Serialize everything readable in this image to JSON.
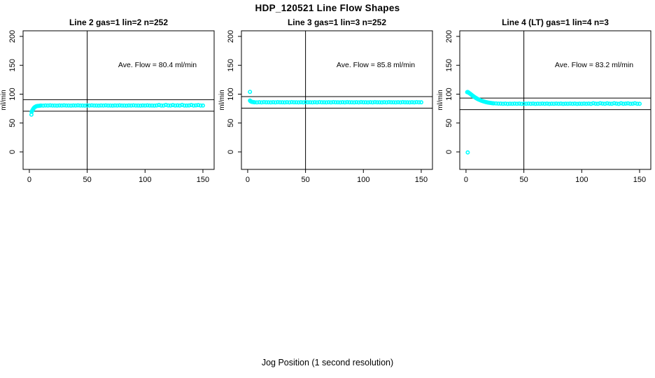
{
  "figure": {
    "title": "HDP_120521  Line Flow Shapes",
    "xlabel": "Jog Position (1 second resolution)",
    "background_color": "#ffffff",
    "point_color": "#00ffff",
    "axis_color": "#000000"
  },
  "chart_data": [
    {
      "type": "scatter",
      "title": "Line 2 gas=1 lin=2 n=252",
      "ylabel": "ml/min",
      "annotation": "Ave. Flow =  80.4  ml/min",
      "ave_flow_ml_min": 80.4,
      "n": 252,
      "x_ticks": [
        0,
        50,
        100,
        150
      ],
      "y_ticks": [
        0,
        50,
        100,
        150,
        200
      ],
      "xlim": [
        -5.4,
        159.7
      ],
      "ylim": [
        -30.3,
        209.7
      ],
      "vline_x": 50,
      "hlines": [
        70.4,
        90.4
      ],
      "grid": false,
      "points": [
        [
          1.8,
          64.5
        ],
        [
          2,
          69.5
        ],
        [
          2.4,
          71
        ],
        [
          2.8,
          72.5
        ],
        [
          3.2,
          74
        ],
        [
          3.6,
          75.2
        ],
        [
          4,
          76.3
        ],
        [
          4.5,
          77.3
        ],
        [
          5,
          78
        ],
        [
          5.5,
          78.6
        ],
        [
          6,
          79
        ],
        [
          7,
          79.5
        ],
        [
          8,
          79.8
        ],
        [
          9,
          80
        ],
        [
          10,
          80.4
        ],
        [
          12,
          80.1
        ],
        [
          14,
          80.5
        ],
        [
          16,
          80.2
        ],
        [
          18,
          80.6
        ],
        [
          20,
          80.3
        ],
        [
          22,
          80.4
        ],
        [
          24,
          80.1
        ],
        [
          26,
          80.5
        ],
        [
          28,
          80.2
        ],
        [
          30,
          80.6
        ],
        [
          32,
          80.3
        ],
        [
          34,
          80.4
        ],
        [
          36,
          80.1
        ],
        [
          38,
          80.5
        ],
        [
          40,
          80.2
        ],
        [
          42,
          80.6
        ],
        [
          44,
          80.3
        ],
        [
          46,
          80.4
        ],
        [
          48,
          80.1
        ],
        [
          50,
          80.5
        ],
        [
          52,
          80.2
        ],
        [
          54,
          80.6
        ],
        [
          56,
          80.3
        ],
        [
          58,
          80.4
        ],
        [
          60,
          80.1
        ],
        [
          62,
          80.5
        ],
        [
          64,
          80.2
        ],
        [
          66,
          80.6
        ],
        [
          68,
          80.3
        ],
        [
          70,
          80.4
        ],
        [
          72,
          80.1
        ],
        [
          74,
          80.5
        ],
        [
          76,
          80.2
        ],
        [
          78,
          80.6
        ],
        [
          80,
          80.3
        ],
        [
          82,
          80.4
        ],
        [
          84,
          80.1
        ],
        [
          86,
          80.5
        ],
        [
          88,
          80.2
        ],
        [
          90,
          80.6
        ],
        [
          92,
          80.3
        ],
        [
          94,
          80.4
        ],
        [
          96,
          80.1
        ],
        [
          98,
          80.5
        ],
        [
          100,
          80.2
        ],
        [
          102,
          80.6
        ],
        [
          104,
          80.3
        ],
        [
          106,
          80.4
        ],
        [
          108,
          80.1
        ],
        [
          110,
          80.5
        ],
        [
          112,
          81.2
        ],
        [
          114,
          80.4
        ],
        [
          116,
          80.2
        ],
        [
          118,
          81.3
        ],
        [
          120,
          80.5
        ],
        [
          122,
          80.2
        ],
        [
          124,
          81.1
        ],
        [
          126,
          80.4
        ],
        [
          128,
          80.6
        ],
        [
          130,
          80.3
        ],
        [
          132,
          81.3
        ],
        [
          134,
          80.4
        ],
        [
          136,
          80.2
        ],
        [
          138,
          80.5
        ],
        [
          140,
          81.2
        ],
        [
          142,
          80.3
        ],
        [
          144,
          80.6
        ],
        [
          146,
          81.1
        ],
        [
          148,
          80.4
        ],
        [
          150,
          80.3
        ]
      ]
    },
    {
      "type": "scatter",
      "title": "Line 3 gas=1 lin=3 n=252",
      "ylabel": "ml/min",
      "annotation": "Ave. Flow =  85.8  ml/min",
      "ave_flow_ml_min": 85.8,
      "n": 252,
      "x_ticks": [
        0,
        50,
        100,
        150
      ],
      "y_ticks": [
        0,
        50,
        100,
        150,
        200
      ],
      "xlim": [
        -5.4,
        159.7
      ],
      "ylim": [
        -30.3,
        209.7
      ],
      "vline_x": 50,
      "hlines": [
        75.8,
        95.8
      ],
      "grid": false,
      "points": [
        [
          2,
          104
        ],
        [
          2,
          89
        ],
        [
          2.5,
          87.8
        ],
        [
          3,
          87.2
        ],
        [
          3.5,
          86.8
        ],
        [
          4,
          86.5
        ],
        [
          5,
          86.2
        ],
        [
          6,
          86
        ],
        [
          8,
          85.7
        ],
        [
          10,
          86.1
        ],
        [
          12,
          85.8
        ],
        [
          14,
          86.2
        ],
        [
          16,
          85.9
        ],
        [
          18,
          86
        ],
        [
          20,
          85.7
        ],
        [
          22,
          86.1
        ],
        [
          24,
          85.8
        ],
        [
          26,
          86.2
        ],
        [
          28,
          85.9
        ],
        [
          30,
          86
        ],
        [
          32,
          85.7
        ],
        [
          34,
          86.1
        ],
        [
          36,
          85.8
        ],
        [
          38,
          86.2
        ],
        [
          40,
          85.9
        ],
        [
          42,
          86
        ],
        [
          44,
          85.7
        ],
        [
          46,
          86.1
        ],
        [
          48,
          85.8
        ],
        [
          50,
          86.2
        ],
        [
          52,
          85.9
        ],
        [
          54,
          86
        ],
        [
          56,
          85.7
        ],
        [
          58,
          86.1
        ],
        [
          60,
          85.8
        ],
        [
          62,
          86.2
        ],
        [
          64,
          85.9
        ],
        [
          66,
          86
        ],
        [
          68,
          85.7
        ],
        [
          70,
          86.1
        ],
        [
          72,
          85.8
        ],
        [
          74,
          86.2
        ],
        [
          76,
          85.9
        ],
        [
          78,
          86
        ],
        [
          80,
          85.7
        ],
        [
          82,
          86.1
        ],
        [
          84,
          85.8
        ],
        [
          86,
          86.2
        ],
        [
          88,
          85.9
        ],
        [
          90,
          86
        ],
        [
          92,
          85.7
        ],
        [
          94,
          86.1
        ],
        [
          96,
          85.8
        ],
        [
          98,
          86.2
        ],
        [
          100,
          85.9
        ],
        [
          102,
          86
        ],
        [
          104,
          85.7
        ],
        [
          106,
          86.1
        ],
        [
          108,
          85.8
        ],
        [
          110,
          86.2
        ],
        [
          112,
          85.9
        ],
        [
          114,
          86
        ],
        [
          116,
          85.7
        ],
        [
          118,
          86.1
        ],
        [
          120,
          85.8
        ],
        [
          122,
          86.2
        ],
        [
          124,
          85.9
        ],
        [
          126,
          86
        ],
        [
          128,
          85.7
        ],
        [
          130,
          86.1
        ],
        [
          132,
          85.8
        ],
        [
          134,
          86.2
        ],
        [
          136,
          85.9
        ],
        [
          138,
          86
        ],
        [
          140,
          85.7
        ],
        [
          142,
          86.1
        ],
        [
          144,
          85.8
        ],
        [
          146,
          86.2
        ],
        [
          148,
          85.9
        ],
        [
          150,
          86
        ]
      ]
    },
    {
      "type": "scatter",
      "title": "Line 4 (LT) gas=1 lin=4 n=3",
      "ylabel": "ml/min",
      "annotation": "Ave. Flow =  83.2  ml/min",
      "ave_flow_ml_min": 83.2,
      "n": 3,
      "x_ticks": [
        0,
        50,
        100,
        150
      ],
      "y_ticks": [
        0,
        50,
        100,
        150,
        200
      ],
      "xlim": [
        -5.4,
        159.7
      ],
      "ylim": [
        -30.3,
        209.7
      ],
      "vline_x": 50,
      "hlines": [
        73.2,
        93.2
      ],
      "grid": false,
      "points": [
        [
          1.5,
          -1
        ],
        [
          1,
          103.5
        ],
        [
          1.4,
          103.8
        ],
        [
          1.8,
          103.3
        ],
        [
          2.2,
          102.8
        ],
        [
          2.6,
          102.2
        ],
        [
          3,
          101.5
        ],
        [
          3.5,
          100.8
        ],
        [
          4,
          100.1
        ],
        [
          4.5,
          99.3
        ],
        [
          5,
          98.5
        ],
        [
          5.5,
          97.7
        ],
        [
          6,
          96.9
        ],
        [
          6.5,
          96.2
        ],
        [
          7,
          95.5
        ],
        [
          7.5,
          94.8
        ],
        [
          8,
          94.1
        ],
        [
          8.5,
          93.5
        ],
        [
          9,
          92.9
        ],
        [
          9.5,
          92.3
        ],
        [
          10,
          91.7
        ],
        [
          11,
          90.7
        ],
        [
          12,
          89.8
        ],
        [
          13,
          89
        ],
        [
          14,
          88.2
        ],
        [
          15,
          87.5
        ],
        [
          16,
          86.9
        ],
        [
          17,
          86.4
        ],
        [
          18,
          85.9
        ],
        [
          19,
          85.5
        ],
        [
          20,
          85.1
        ],
        [
          21,
          84.8
        ],
        [
          22,
          84.5
        ],
        [
          23,
          84.3
        ],
        [
          24,
          84.1
        ],
        [
          26,
          83.9
        ],
        [
          28,
          83.7
        ],
        [
          30,
          83.6
        ],
        [
          32,
          83.3
        ],
        [
          34,
          83.6
        ],
        [
          36,
          83.2
        ],
        [
          38,
          83.5
        ],
        [
          40,
          83.4
        ],
        [
          42,
          83.7
        ],
        [
          44,
          83.3
        ],
        [
          46,
          83.6
        ],
        [
          48,
          83.2
        ],
        [
          50,
          83.5
        ],
        [
          52,
          83.4
        ],
        [
          54,
          83.7
        ],
        [
          56,
          83.3
        ],
        [
          58,
          83.6
        ],
        [
          60,
          83.2
        ],
        [
          62,
          83.5
        ],
        [
          64,
          83.4
        ],
        [
          66,
          83.7
        ],
        [
          68,
          83.3
        ],
        [
          70,
          83.6
        ],
        [
          72,
          83.2
        ],
        [
          74,
          83.5
        ],
        [
          76,
          83.4
        ],
        [
          78,
          83.7
        ],
        [
          80,
          83.3
        ],
        [
          82,
          83.6
        ],
        [
          84,
          83.2
        ],
        [
          86,
          83.5
        ],
        [
          88,
          83.4
        ],
        [
          90,
          83.7
        ],
        [
          92,
          83.3
        ],
        [
          94,
          83.6
        ],
        [
          96,
          83.2
        ],
        [
          98,
          83.5
        ],
        [
          100,
          83.4
        ],
        [
          102,
          83.7
        ],
        [
          104,
          83.3
        ],
        [
          106,
          83.6
        ],
        [
          108,
          83.2
        ],
        [
          110,
          84.2
        ],
        [
          112,
          83.5
        ],
        [
          114,
          83.3
        ],
        [
          116,
          84.3
        ],
        [
          118,
          83.6
        ],
        [
          120,
          83.3
        ],
        [
          122,
          84.1
        ],
        [
          124,
          83.5
        ],
        [
          126,
          83.4
        ],
        [
          128,
          84.3
        ],
        [
          130,
          83.6
        ],
        [
          132,
          83.2
        ],
        [
          134,
          84.2
        ],
        [
          136,
          83.4
        ],
        [
          138,
          83.6
        ],
        [
          140,
          84.1
        ],
        [
          142,
          83.3
        ],
        [
          144,
          83.5
        ],
        [
          146,
          84.2
        ],
        [
          148,
          83.4
        ],
        [
          150,
          83.3
        ]
      ]
    }
  ]
}
